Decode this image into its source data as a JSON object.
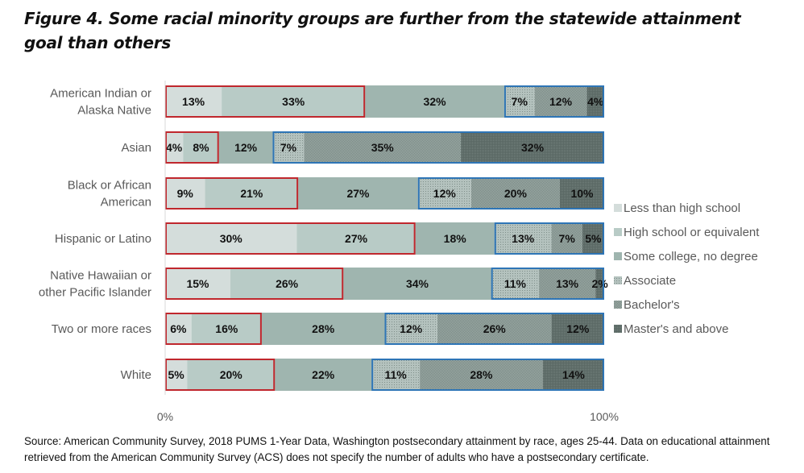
{
  "title": "Figure 4. Some racial minority groups are further from the statewide attainment goal than others",
  "source": "Source: American Community Survey, 2018 PUMS 1-Year Data, Washington postsecondary attainment by race, ages 25-44. Data on educational attainment retrieved from the American Community Survey (ACS) does not specify the number of adults who have a postsecondary certificate.",
  "chart_data": {
    "type": "bar",
    "orientation": "horizontal",
    "stacked": "100%",
    "categories": [
      "American Indian or Alaska Native",
      "Asian",
      "Black or African American",
      "Hispanic or Latino",
      "Native Hawaiian or other Pacific Islander",
      "Two or more races",
      "White"
    ],
    "series": [
      {
        "name": "Less than high school",
        "values": [
          13,
          4,
          9,
          30,
          15,
          6,
          5
        ],
        "color": "#d4dddb",
        "pattern": "solid"
      },
      {
        "name": "High school or equivalent",
        "values": [
          33,
          8,
          21,
          27,
          26,
          16,
          20
        ],
        "color": "#b8cbc6",
        "pattern": "solid"
      },
      {
        "name": "Some college, no degree",
        "values": [
          32,
          12,
          27,
          18,
          34,
          28,
          22
        ],
        "color": "#9fb5af",
        "pattern": "solid"
      },
      {
        "name": "Associate",
        "values": [
          7,
          7,
          12,
          13,
          11,
          12,
          11
        ],
        "color": "#a9b8b4",
        "pattern": "fine-dots"
      },
      {
        "name": "Bachelor's",
        "values": [
          12,
          35,
          20,
          7,
          13,
          26,
          28
        ],
        "color": "#8e9d99",
        "pattern": "checker"
      },
      {
        "name": "Master's and above",
        "values": [
          4,
          32,
          10,
          5,
          2,
          12,
          14
        ],
        "color": "#5f6d69",
        "pattern": "dense"
      }
    ],
    "xlim": [
      0,
      100
    ],
    "xticks": [
      "0%",
      "100%"
    ],
    "value_format": "%",
    "legend": "right",
    "grid": false,
    "highlight_groups": [
      {
        "series": [
          "Less than high school",
          "High school or equivalent"
        ],
        "outline": "#c0272d"
      },
      {
        "series": [
          "Associate",
          "Bachelor's",
          "Master's and above"
        ],
        "outline": "#2e75b6"
      }
    ]
  }
}
